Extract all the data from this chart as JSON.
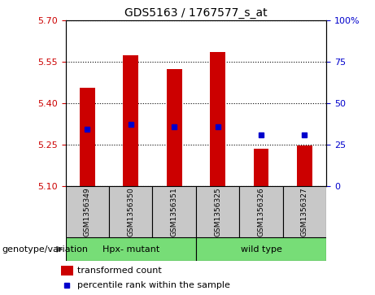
{
  "title": "GDS5163 / 1767577_s_at",
  "samples": [
    "GSM1356349",
    "GSM1356350",
    "GSM1356351",
    "GSM1356325",
    "GSM1356326",
    "GSM1356327"
  ],
  "bar_values": [
    5.455,
    5.575,
    5.525,
    5.585,
    5.235,
    5.248
  ],
  "percentile_values": [
    5.305,
    5.322,
    5.315,
    5.315,
    5.285,
    5.285
  ],
  "bar_base": 5.1,
  "ylim_left": [
    5.1,
    5.7
  ],
  "ylim_right": [
    0,
    100
  ],
  "yticks_left": [
    5.1,
    5.25,
    5.4,
    5.55,
    5.7
  ],
  "yticks_right": [
    0,
    25,
    50,
    75,
    100
  ],
  "bar_color": "#cc0000",
  "marker_color": "#0000cc",
  "group1_label": "Hpx- mutant",
  "group2_label": "wild type",
  "group1_indices": [
    0,
    1,
    2
  ],
  "group2_indices": [
    3,
    4,
    5
  ],
  "group_color": "#77dd77",
  "sample_bg_color": "#c8c8c8",
  "legend_label_bar": "transformed count",
  "legend_label_marker": "percentile rank within the sample",
  "xlabel_left": "genotype/variation",
  "bar_width": 0.35
}
